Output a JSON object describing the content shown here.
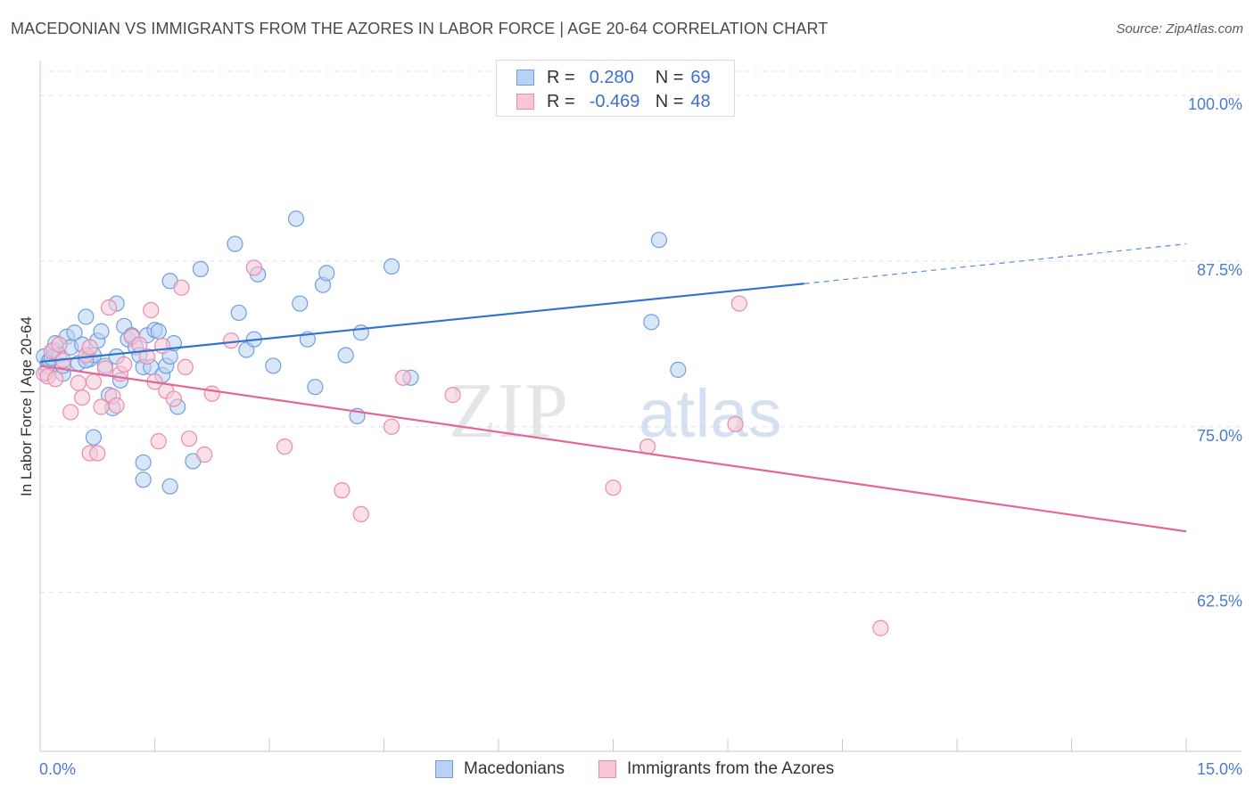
{
  "header": {
    "title": "MACEDONIAN VS IMMIGRANTS FROM THE AZORES IN LABOR FORCE | AGE 20-64 CORRELATION CHART",
    "source": "Source: ZipAtlas.com"
  },
  "legend_top": {
    "rows": [
      {
        "r_label": "R =",
        "r_value": "0.280",
        "n_label": "N =",
        "n_value": "69"
      },
      {
        "r_label": "R =",
        "r_value": "-0.469",
        "n_label": "N =",
        "n_value": "48"
      }
    ]
  },
  "legend_bottom": {
    "items": [
      {
        "label": "Macedonians"
      },
      {
        "label": "Immigrants from the Azores"
      }
    ]
  },
  "watermark": {
    "zip": "ZIP",
    "atlas": "atlas"
  },
  "colors": {
    "blue": "#6f9fe0",
    "blue_fill": "#b9d1f3",
    "blue_line": "#2f72d0",
    "pink": "#eb8aab",
    "pink_fill": "#f8c6d6",
    "pink_line": "#e4679a",
    "tick_text": "#4a7bd0",
    "grid": "#dfe2e8"
  },
  "chart_data": {
    "type": "scatter",
    "title": "MACEDONIAN VS IMMIGRANTS FROM THE AZORES IN LABOR FORCE | AGE 20-64 CORRELATION CHART",
    "xlabel": "",
    "ylabel": "In Labor Force | Age 20-64",
    "xlim": [
      0,
      15
    ],
    "ylim": [
      50.5,
      102.5
    ],
    "x_tick_labels": [
      "0.0%",
      "15.0%"
    ],
    "y_ticks": [
      {
        "value": 100.0,
        "label": "100.0%"
      },
      {
        "value": 87.5,
        "label": "87.5%"
      },
      {
        "value": 75.0,
        "label": "75.0%"
      },
      {
        "value": 62.5,
        "label": "62.5%"
      }
    ],
    "series": [
      {
        "name": "Macedonians",
        "r": 0.28,
        "n": 69,
        "trend": {
          "x0": 0.0,
          "y0": 79.9,
          "x1": 10.0,
          "y1": 85.8,
          "dashed_to_x": 15.0,
          "dashed_to_y": 88.8
        },
        "points": [
          [
            0.05,
            80.3
          ],
          [
            0.08,
            79.1
          ],
          [
            0.1,
            79.6
          ],
          [
            0.12,
            80.0
          ],
          [
            0.15,
            80.2
          ],
          [
            0.18,
            80.8
          ],
          [
            0.2,
            81.3
          ],
          [
            0.25,
            80.4
          ],
          [
            0.3,
            79.0
          ],
          [
            0.35,
            81.8
          ],
          [
            0.4,
            81.0
          ],
          [
            0.45,
            82.1
          ],
          [
            0.5,
            79.8
          ],
          [
            0.55,
            81.2
          ],
          [
            0.6,
            83.3
          ],
          [
            0.65,
            80.1
          ],
          [
            0.7,
            80.4
          ],
          [
            0.75,
            81.5
          ],
          [
            0.8,
            82.2
          ],
          [
            0.85,
            79.6
          ],
          [
            0.9,
            77.4
          ],
          [
            0.95,
            76.4
          ],
          [
            1.0,
            80.3
          ],
          [
            1.05,
            78.5
          ],
          [
            1.1,
            82.6
          ],
          [
            1.15,
            81.6
          ],
          [
            1.2,
            81.9
          ],
          [
            1.25,
            81.0
          ],
          [
            1.3,
            80.4
          ],
          [
            1.35,
            79.5
          ],
          [
            1.4,
            81.9
          ],
          [
            1.45,
            79.5
          ],
          [
            1.5,
            82.3
          ],
          [
            1.55,
            82.2
          ],
          [
            1.6,
            78.9
          ],
          [
            1.65,
            79.6
          ],
          [
            1.7,
            80.3
          ],
          [
            1.75,
            81.3
          ],
          [
            1.8,
            76.5
          ],
          [
            1.0,
            84.3
          ],
          [
            0.7,
            74.2
          ],
          [
            1.35,
            72.3
          ],
          [
            1.35,
            71.0
          ],
          [
            1.7,
            70.5
          ],
          [
            2.0,
            72.4
          ],
          [
            1.7,
            86.0
          ],
          [
            2.1,
            86.9
          ],
          [
            2.55,
            88.8
          ],
          [
            2.6,
            83.6
          ],
          [
            2.7,
            80.8
          ],
          [
            2.8,
            81.6
          ],
          [
            2.85,
            86.5
          ],
          [
            3.05,
            79.6
          ],
          [
            3.35,
            90.7
          ],
          [
            3.4,
            84.3
          ],
          [
            3.5,
            81.6
          ],
          [
            3.6,
            78.0
          ],
          [
            3.7,
            85.7
          ],
          [
            3.75,
            86.6
          ],
          [
            4.0,
            80.4
          ],
          [
            4.15,
            75.8
          ],
          [
            4.2,
            82.1
          ],
          [
            4.6,
            87.1
          ],
          [
            4.85,
            78.7
          ],
          [
            8.0,
            82.9
          ],
          [
            8.1,
            89.1
          ],
          [
            8.35,
            79.3
          ],
          [
            0.3,
            79.6
          ],
          [
            0.6,
            80.0
          ]
        ]
      },
      {
        "name": "Immigrants from the Azores",
        "r": -0.469,
        "n": 48,
        "trend": {
          "x0": 0.0,
          "y0": 79.6,
          "x1": 15.0,
          "y1": 67.1
        },
        "points": [
          [
            0.05,
            79.0
          ],
          [
            0.1,
            78.8
          ],
          [
            0.15,
            80.7
          ],
          [
            0.2,
            78.6
          ],
          [
            0.25,
            81.2
          ],
          [
            0.3,
            80.0
          ],
          [
            0.4,
            76.1
          ],
          [
            0.5,
            78.3
          ],
          [
            0.55,
            77.2
          ],
          [
            0.6,
            80.4
          ],
          [
            0.65,
            73.0
          ],
          [
            0.7,
            78.4
          ],
          [
            0.75,
            73.0
          ],
          [
            0.8,
            76.5
          ],
          [
            0.85,
            79.4
          ],
          [
            0.9,
            84.0
          ],
          [
            0.95,
            77.3
          ],
          [
            1.0,
            76.6
          ],
          [
            1.05,
            79.0
          ],
          [
            1.1,
            79.7
          ],
          [
            1.2,
            81.8
          ],
          [
            1.3,
            81.2
          ],
          [
            1.4,
            80.3
          ],
          [
            1.45,
            83.8
          ],
          [
            1.5,
            78.4
          ],
          [
            1.55,
            73.9
          ],
          [
            1.6,
            81.1
          ],
          [
            1.65,
            77.7
          ],
          [
            1.75,
            77.1
          ],
          [
            1.85,
            85.5
          ],
          [
            1.9,
            79.5
          ],
          [
            1.95,
            74.1
          ],
          [
            2.15,
            72.9
          ],
          [
            2.25,
            77.5
          ],
          [
            2.5,
            81.5
          ],
          [
            2.8,
            87.0
          ],
          [
            3.2,
            73.5
          ],
          [
            3.95,
            70.2
          ],
          [
            4.2,
            68.4
          ],
          [
            4.6,
            75.0
          ],
          [
            4.75,
            78.7
          ],
          [
            5.4,
            77.4
          ],
          [
            7.5,
            70.4
          ],
          [
            7.95,
            73.5
          ],
          [
            9.1,
            75.2
          ],
          [
            9.15,
            84.3
          ],
          [
            11.0,
            59.8
          ],
          [
            0.65,
            81.0
          ]
        ]
      }
    ]
  }
}
